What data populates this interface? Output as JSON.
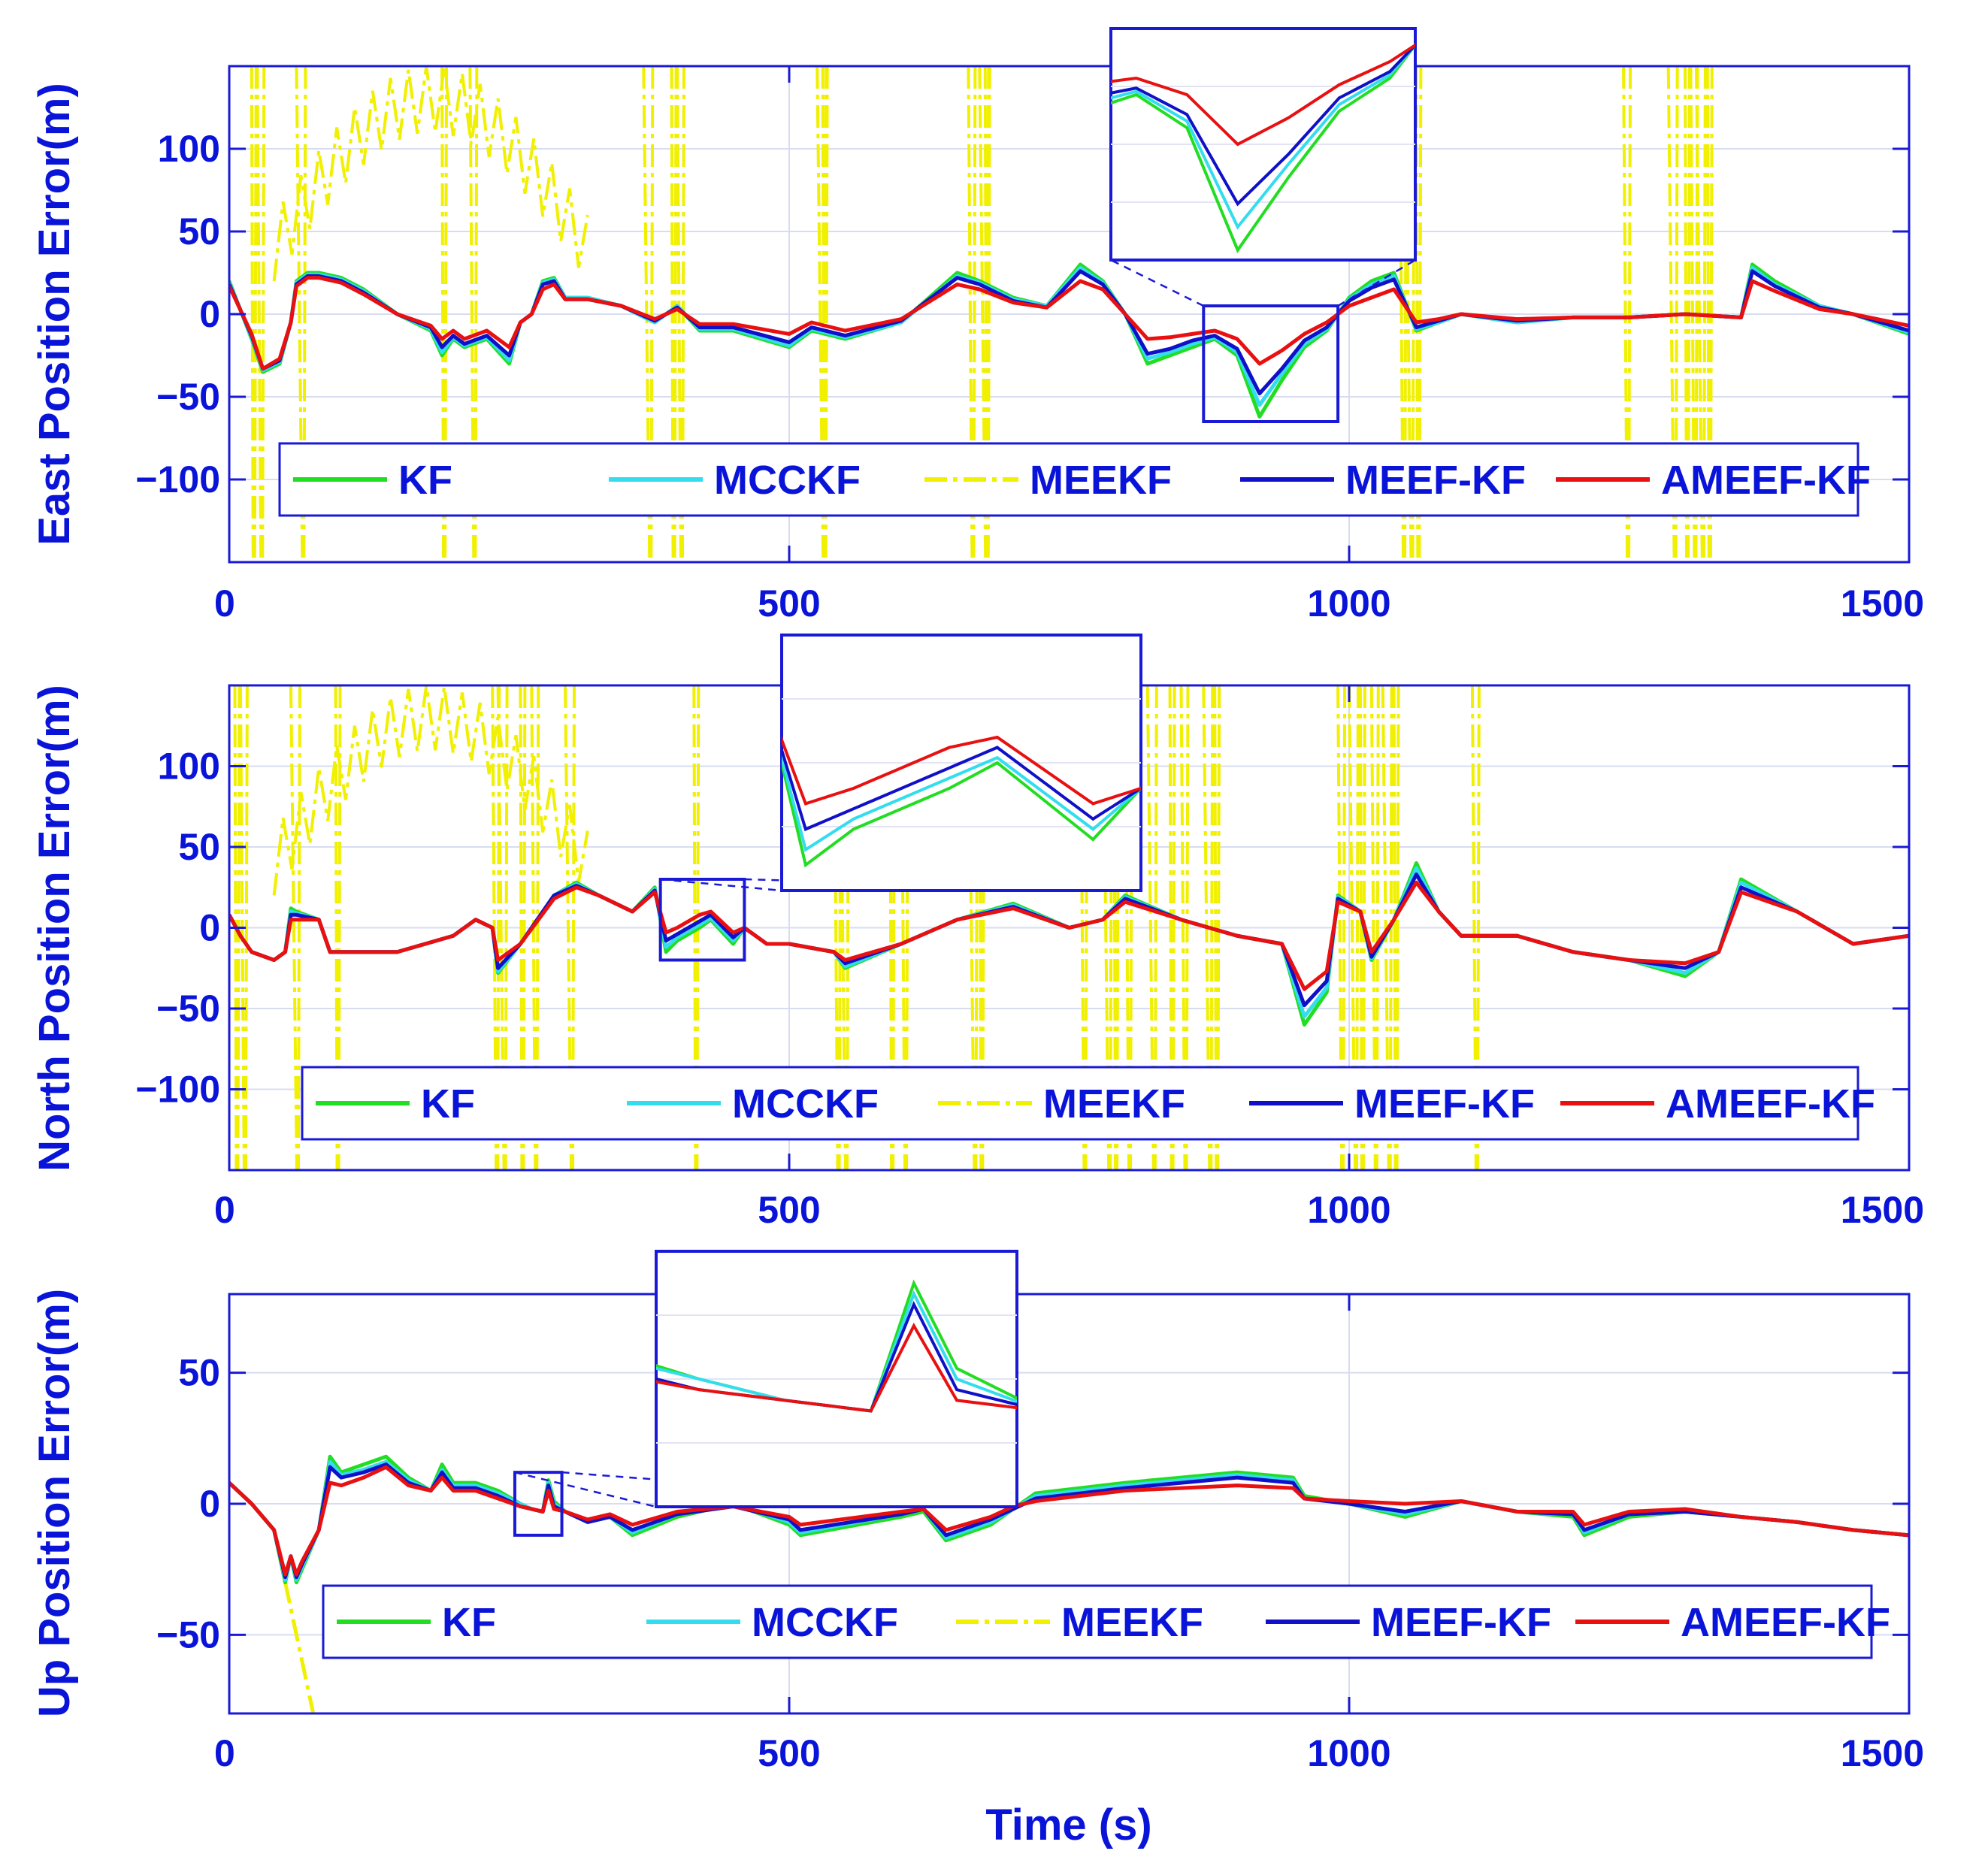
{
  "chart_data": [
    {
      "type": "line",
      "ylabel": "East Position Error(m)",
      "xlabel": "",
      "xlim": [
        0,
        1500
      ],
      "ylim": [
        -150,
        150
      ],
      "xticks": [
        0,
        500,
        1000,
        1500
      ],
      "yticks": [
        -100,
        -50,
        0,
        50,
        100
      ],
      "yticklabels": [
        "−100",
        "−50",
        "0",
        "50",
        "100"
      ],
      "grid": true,
      "legend_position": "bottom",
      "legend": [
        "KF",
        "MCCKF",
        "MEEKF",
        "MEEF-KF",
        "AMEEF-KF"
      ],
      "colors": {
        "KF": "#22dd22",
        "MCCKF": "#33ddee",
        "MEEKF": "#f0f000",
        "MEEF-KF": "#1010c8",
        "AMEEF-KF": "#e81010"
      },
      "inset": {
        "xrange": [
          870,
          990
        ],
        "yrange": [
          -65,
          5
        ],
        "placement": "top-center"
      },
      "series": {
        "x": [
          0,
          20,
          30,
          45,
          55,
          60,
          70,
          80,
          100,
          120,
          150,
          180,
          190,
          200,
          210,
          230,
          250,
          260,
          270,
          280,
          290,
          300,
          320,
          350,
          380,
          400,
          420,
          450,
          500,
          520,
          550,
          600,
          650,
          670,
          700,
          730,
          760,
          780,
          800,
          820,
          840,
          860,
          880,
          900,
          920,
          940,
          960,
          980,
          1000,
          1020,
          1040,
          1060,
          1080,
          1100,
          1150,
          1200,
          1250,
          1300,
          1350,
          1360,
          1380,
          1420,
          1450,
          1500
        ],
        "KF": [
          20,
          -15,
          -35,
          -30,
          -5,
          20,
          25,
          25,
          22,
          15,
          0,
          -10,
          -25,
          -15,
          -20,
          -15,
          -30,
          -5,
          0,
          20,
          22,
          10,
          10,
          5,
          -5,
          5,
          -10,
          -10,
          -20,
          -10,
          -15,
          -5,
          25,
          20,
          10,
          5,
          30,
          20,
          0,
          -30,
          -25,
          -20,
          -15,
          -25,
          -62,
          -40,
          -20,
          -10,
          10,
          20,
          25,
          -10,
          -5,
          0,
          -5,
          -2,
          -2,
          0,
          -2,
          30,
          20,
          5,
          0,
          -12
        ],
        "MCCKF": [
          19,
          -14,
          -34,
          -29,
          -5,
          19,
          24,
          24,
          21,
          14,
          0,
          -9,
          -23,
          -14,
          -19,
          -14,
          -28,
          -5,
          0,
          19,
          21,
          10,
          10,
          5,
          -5,
          5,
          -9,
          -9,
          -19,
          -9,
          -14,
          -5,
          23,
          19,
          9,
          5,
          28,
          19,
          0,
          -27,
          -23,
          -18,
          -14,
          -23,
          -55,
          -36,
          -18,
          -9,
          9,
          18,
          23,
          -9,
          -5,
          0,
          -5,
          -2,
          -2,
          0,
          -2,
          28,
          18,
          5,
          0,
          -11
        ],
        "MEEF-KF": [
          18,
          -13,
          -33,
          -28,
          -5,
          18,
          23,
          23,
          20,
          13,
          0,
          -8,
          -20,
          -13,
          -18,
          -13,
          -25,
          -5,
          0,
          18,
          20,
          9,
          9,
          5,
          -4,
          4,
          -8,
          -8,
          -17,
          -8,
          -13,
          -4,
          22,
          18,
          8,
          4,
          26,
          18,
          0,
          -24,
          -21,
          -16,
          -13,
          -21,
          -48,
          -33,
          -16,
          -8,
          8,
          16,
          21,
          -8,
          -4,
          0,
          -4,
          -2,
          -2,
          0,
          -2,
          26,
          17,
          4,
          0,
          -10
        ],
        "AMEEF-KF": [
          17,
          -12,
          -33,
          -27,
          -5,
          17,
          22,
          22,
          19,
          12,
          0,
          -7,
          -15,
          -10,
          -15,
          -10,
          -20,
          -5,
          0,
          15,
          18,
          9,
          9,
          5,
          -3,
          3,
          -6,
          -6,
          -12,
          -5,
          -10,
          -3,
          18,
          15,
          7,
          4,
          20,
          15,
          0,
          -15,
          -14,
          -12,
          -10,
          -15,
          -30,
          -22,
          -12,
          -5,
          5,
          10,
          15,
          -5,
          -3,
          0,
          -3,
          -2,
          -2,
          0,
          -2,
          20,
          14,
          3,
          0,
          -7
        ]
      },
      "meekf_spikes_x": [
        20,
        25,
        60,
        190,
        215,
        370,
        395,
        400,
        525,
        530,
        660,
        670,
        675,
        1045,
        1050,
        1060,
        1245,
        1285,
        1300,
        1305,
        1310,
        1320
      ]
    },
    {
      "type": "line",
      "ylabel": "North Position Error(m)",
      "xlabel": "",
      "xlim": [
        0,
        1500
      ],
      "ylim": [
        -150,
        150
      ],
      "xticks": [
        0,
        500,
        1000,
        1500
      ],
      "yticks": [
        -100,
        -50,
        0,
        50,
        100
      ],
      "yticklabels": [
        "−100",
        "−50",
        "0",
        "50",
        "100"
      ],
      "grid": true,
      "legend_position": "bottom",
      "legend": [
        "KF",
        "MCCKF",
        "MEEKF",
        "MEEF-KF",
        "AMEEF-KF"
      ],
      "colors": {
        "KF": "#22dd22",
        "MCCKF": "#33ddee",
        "MEEKF": "#f0f000",
        "MEEF-KF": "#1010c8",
        "AMEEF-KF": "#e81010"
      },
      "inset": {
        "xrange": [
          385,
          460
        ],
        "yrange": [
          -20,
          30
        ],
        "placement": "top-center"
      },
      "series": {
        "x": [
          0,
          10,
          20,
          40,
          50,
          55,
          60,
          80,
          90,
          100,
          150,
          200,
          220,
          235,
          240,
          260,
          290,
          310,
          330,
          360,
          380,
          390,
          400,
          420,
          430,
          450,
          460,
          480,
          500,
          540,
          550,
          600,
          650,
          700,
          750,
          780,
          800,
          850,
          900,
          940,
          960,
          980,
          990,
          1010,
          1020,
          1040,
          1060,
          1080,
          1100,
          1150,
          1200,
          1250,
          1300,
          1330,
          1350,
          1400,
          1450,
          1500
        ],
        "KF": [
          8,
          -5,
          -15,
          -20,
          -15,
          12,
          10,
          5,
          -15,
          -15,
          -15,
          -5,
          5,
          0,
          -28,
          -10,
          20,
          28,
          20,
          10,
          25,
          -15,
          -8,
          0,
          5,
          -10,
          0,
          -10,
          -10,
          -15,
          -25,
          -10,
          5,
          15,
          0,
          5,
          20,
          5,
          -5,
          -10,
          -60,
          -40,
          20,
          10,
          -20,
          5,
          40,
          10,
          -5,
          -5,
          -15,
          -20,
          -30,
          -15,
          30,
          10,
          -10,
          -5
        ],
        "MCCKF": [
          8,
          -5,
          -15,
          -20,
          -15,
          10,
          9,
          5,
          -15,
          -15,
          -15,
          -5,
          5,
          0,
          -27,
          -10,
          20,
          27,
          20,
          10,
          24,
          -12,
          -6,
          2,
          6,
          -8,
          0,
          -10,
          -10,
          -15,
          -24,
          -10,
          5,
          14,
          0,
          5,
          19,
          5,
          -5,
          -10,
          -55,
          -37,
          19,
          10,
          -19,
          5,
          37,
          10,
          -5,
          -5,
          -15,
          -20,
          -28,
          -15,
          28,
          10,
          -10,
          -5
        ],
        "MEEF-KF": [
          8,
          -5,
          -15,
          -20,
          -15,
          8,
          8,
          5,
          -15,
          -15,
          -15,
          -5,
          5,
          0,
          -25,
          -10,
          20,
          26,
          20,
          10,
          23,
          -8,
          -4,
          4,
          8,
          -6,
          0,
          -10,
          -10,
          -15,
          -22,
          -10,
          5,
          13,
          0,
          5,
          18,
          5,
          -5,
          -10,
          -48,
          -33,
          18,
          10,
          -18,
          5,
          33,
          10,
          -5,
          -5,
          -15,
          -20,
          -25,
          -15,
          25,
          10,
          -10,
          -5
        ],
        "AMEEF-KF": [
          8,
          -5,
          -15,
          -20,
          -15,
          5,
          5,
          5,
          -15,
          -15,
          -15,
          -5,
          5,
          0,
          -20,
          -10,
          18,
          25,
          20,
          10,
          22,
          -3,
          0,
          8,
          10,
          -3,
          0,
          -10,
          -10,
          -15,
          -20,
          -10,
          5,
          12,
          0,
          5,
          16,
          5,
          -5,
          -10,
          -38,
          -27,
          16,
          10,
          -15,
          5,
          28,
          10,
          -5,
          -5,
          -15,
          -20,
          -22,
          -15,
          22,
          10,
          -10,
          -5
        ]
      },
      "meekf_spikes_x": [
        5,
        10,
        55,
        95,
        235,
        240,
        260,
        270,
        300,
        415,
        540,
        545,
        590,
        600,
        660,
        670,
        760,
        780,
        790,
        800,
        820,
        840,
        850,
        870,
        880,
        990,
        1000,
        1010,
        1020,
        1030,
        1040,
        1110
      ]
    },
    {
      "type": "line",
      "ylabel": "Up Position Error(m)",
      "xlabel": "Time (s)",
      "xlim": [
        0,
        1500
      ],
      "ylim": [
        -80,
        80
      ],
      "xticks": [
        0,
        500,
        1000,
        1500
      ],
      "yticks": [
        -50,
        0,
        50
      ],
      "yticklabels": [
        "−50",
        "0",
        "50"
      ],
      "grid": true,
      "legend_position": "bottom",
      "legend": [
        "KF",
        "MCCKF",
        "MEEKF",
        "MEEF-KF",
        "AMEEF-KF"
      ],
      "colors": {
        "KF": "#22dd22",
        "MCCKF": "#33ddee",
        "MEEKF": "#f0f000",
        "MEEF-KF": "#1010c8",
        "AMEEF-KF": "#e81010"
      },
      "inset": {
        "xrange": [
          255,
          297
        ],
        "yrange": [
          -12,
          12
        ],
        "placement": "top-center"
      },
      "series": {
        "x": [
          0,
          20,
          40,
          50,
          55,
          60,
          65,
          80,
          90,
          100,
          120,
          140,
          160,
          180,
          190,
          200,
          220,
          240,
          260,
          270,
          280,
          285,
          290,
          300,
          320,
          340,
          360,
          400,
          450,
          500,
          510,
          600,
          620,
          640,
          680,
          700,
          720,
          760,
          800,
          850,
          900,
          950,
          960,
          1000,
          1050,
          1100,
          1150,
          1200,
          1210,
          1250,
          1300,
          1350,
          1400,
          1450,
          1500
        ],
        "KF": [
          8,
          0,
          -10,
          -30,
          -20,
          -30,
          -25,
          -10,
          18,
          12,
          15,
          18,
          10,
          5,
          15,
          8,
          8,
          5,
          0,
          -2,
          -3,
          9,
          1,
          -3,
          -7,
          -5,
          -12,
          -5,
          0,
          -8,
          -12,
          -5,
          -3,
          -14,
          -8,
          -2,
          4,
          6,
          8,
          10,
          12,
          10,
          3,
          0,
          -5,
          1,
          -3,
          -5,
          -12,
          -5,
          -3,
          -5,
          -7,
          -10,
          -12
        ],
        "MCCKF": [
          8,
          0,
          -10,
          -29,
          -20,
          -29,
          -24,
          -10,
          16,
          11,
          13,
          16,
          9,
          5,
          13,
          7,
          7,
          4,
          0,
          -2,
          -3,
          8,
          0,
          -3,
          -7,
          -5,
          -11,
          -4,
          0,
          -7,
          -11,
          -4,
          -2,
          -13,
          -7,
          -2,
          3,
          5,
          7,
          9,
          11,
          9,
          2,
          0,
          -4,
          1,
          -3,
          -4,
          -11,
          -4,
          -3,
          -5,
          -7,
          -10,
          -12
        ],
        "MEEF-KF": [
          8,
          0,
          -10,
          -28,
          -20,
          -28,
          -23,
          -10,
          14,
          10,
          12,
          15,
          8,
          5,
          12,
          6,
          6,
          3,
          -1,
          -2,
          -3,
          7,
          -1,
          -3,
          -7,
          -5,
          -10,
          -4,
          -1,
          -6,
          -10,
          -4,
          -2,
          -12,
          -6,
          -2,
          2,
          4,
          6,
          8,
          10,
          8,
          2,
          0,
          -3,
          1,
          -3,
          -4,
          -10,
          -4,
          -3,
          -5,
          -7,
          -10,
          -12
        ],
        "AMEEF-KF": [
          8,
          0,
          -10,
          -27,
          -20,
          -27,
          -22,
          -10,
          8,
          7,
          10,
          14,
          7,
          5,
          10,
          5,
          5,
          2,
          -1,
          -2,
          -3,
          5,
          -2,
          -3,
          -6,
          -4,
          -8,
          -3,
          -1,
          -5,
          -8,
          -3,
          -2,
          -10,
          -5,
          -1,
          1,
          3,
          5,
          6,
          7,
          6,
          2,
          1,
          0,
          1,
          -3,
          -3,
          -8,
          -3,
          -2,
          -5,
          -7,
          -10,
          -12
        ]
      },
      "meekf_path": {
        "x": [
          0,
          20,
          40,
          50,
          60,
          70,
          75
        ],
        "y": [
          8,
          0,
          -10,
          -30,
          -50,
          -70,
          -80
        ]
      }
    }
  ]
}
